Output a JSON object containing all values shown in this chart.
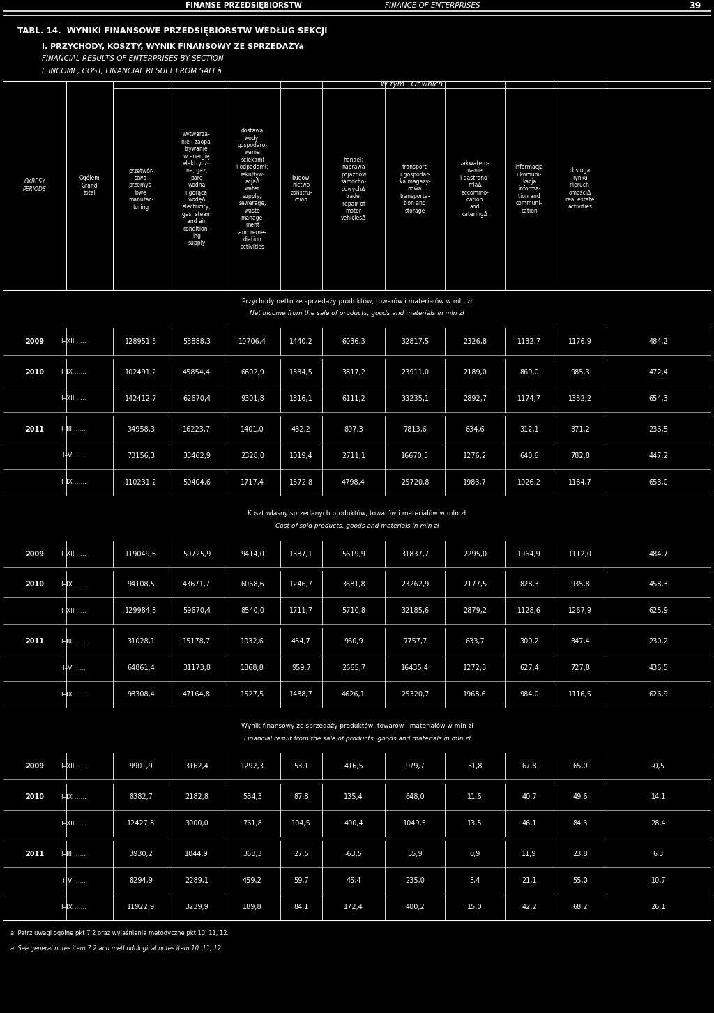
{
  "page_header_left": "FINANSE PRZEDSIĘBIORSTW",
  "page_header_right": "FINANCE OF ENTERPRISES",
  "page_number": "39",
  "title_line1": "TABL. 14.  WYNIKI FINANSOWE PRZEDSIĘBIORSTW WEDŁUG SEKCJI",
  "title_line2": "I. PRZYCHODY, KOSZTY, WYNIK FINANSOWY ZE SPRZEDAŻYà",
  "title_line3": "FINANCIAL RESULTS OF ENTERPRISES BY SECTION",
  "title_line4": "I. INCOME, COST, FINANCIAL RESULT FROM SALEà",
  "col_headers": [
    "OKRESY\nPERIODS",
    "Ogółem\nGrand\ntotal",
    "przetwór-\nstwo\nprzemys-\nłowe\nmanufac-\nturing",
    "wytwarza-\nnie i zaopa-\ntrywanie\nw energię\nelektrycz-\nna, gaz,\nparę\nwodną\ni gorącą\nwodęΔ\nelectricity,\ngas, steam\nand air\ncondition-\ning\nsupply",
    "dostawa\nwody;\ngospodaro-\nwanie\nściekami\ni odpadami;\nrekultyw-\nacjaΔ\nwater\nsupply;\nsewerage,\nwaste\nmanage-\nment\nand reme-\ndiation\nactivities",
    "budow-\nnictwo\nconstru-\nction",
    "handel;\nnaprawa\npojazdów\nsamocho-\ndowychΔ\ntrade;\nrepair of\nmotor\nvehiclesΔ",
    "transport\ni gospodar-\nka magazy-\nnowa\ntransporta-\ntion and\nstorage",
    "zakwatero-\nwanie\ni gastrono-\nmiaΔ\naccommo-\ndation\nand\ncateringΔ",
    "informacja\ni komuni-\nkacja\ninforma-\ntion and\ncommuni-\ncation",
    "obsługa\nrynku\nnieruch-\nomościΔ\nreal estate\nactivities"
  ],
  "wtym_ofwhich": "W tym   Of which",
  "section1_title_pl": "Przychody netto ze sprzedaży produktów, towarów i materiałów w mln zł",
  "section1_title_en": "Net income from the sale of products, goods and materials in mln zł",
  "section2_title_pl": "Koszt własny sprzedanych produktów, towarów i materiałów w mln zł",
  "section2_title_en": "Cost of sold products, goods and materials in mln zł",
  "section3_title_pl": "Wynik finansowy ze sprzedaży produktów, towarów i materiałów w mln zł",
  "section3_title_en": "Financial result from the sale of products, goods and materials in mln zł",
  "rows": {
    "section1": [
      [
        "2009",
        "I–XII .....",
        "128951,5",
        "53888,3",
        "10706,4",
        "1440,2",
        "6036,3",
        "32817,5",
        "2326,8",
        "1132,7",
        "1176,9",
        "484,2"
      ],
      [
        "2010",
        "I–IX ......",
        "102491,2",
        "45854,4",
        "6602,9",
        "1334,5",
        "3817,2",
        "23911,0",
        "2189,0",
        "869,0",
        "985,3",
        "472,4"
      ],
      [
        "",
        "I–XII .....",
        "142412,7",
        "62670,4",
        "9301,8",
        "1816,1",
        "6111,2",
        "33235,1",
        "2892,7",
        "1174,7",
        "1352,2",
        "654,3"
      ],
      [
        "2011",
        "I–III ......",
        "34958,3",
        "16223,7",
        "1401,0",
        "482,2",
        "897,3",
        "7813,6",
        "634,6",
        "312,1",
        "371,2",
        "236,5"
      ],
      [
        "",
        "I–VI .....",
        "73156,3",
        "33462,9",
        "2328,0",
        "1019,4",
        "2711,1",
        "16670,5",
        "1276,2",
        "648,6",
        "782,8",
        "447,2"
      ],
      [
        "",
        "I–IX ......",
        "110231,2",
        "50404,6",
        "1717,4",
        "1572,8",
        "4798,4",
        "25720,8",
        "1983,7",
        "1026,2",
        "1184,7",
        "653,0"
      ]
    ],
    "section2": [
      [
        "2009",
        "I–XII .....",
        "119049,6",
        "50725,9",
        "9414,0",
        "1387,1",
        "5619,9",
        "31837,7",
        "2295,0",
        "1064,9",
        "1112,0",
        "484,7"
      ],
      [
        "2010",
        "I–IX ......",
        "94108,5",
        "43671,7",
        "6068,6",
        "1246,7",
        "3681,8",
        "23262,9",
        "2177,5",
        "828,3",
        "935,8",
        "458,3"
      ],
      [
        "",
        "I–XII .....",
        "129984,8",
        "59670,4",
        "8540,0",
        "1711,7",
        "5710,8",
        "32185,6",
        "2879,2",
        "1128,6",
        "1267,9",
        "625,9"
      ],
      [
        "2011",
        "I–III ......",
        "31028,1",
        "15178,7",
        "1032,6",
        "454,7",
        "960,9",
        "7757,7",
        "633,7",
        "300,2",
        "347,4",
        "230,2"
      ],
      [
        "",
        "I–VI .....",
        "64861,4",
        "31173,8",
        "1868,8",
        "959,7",
        "2665,7",
        "16435,4",
        "1272,8",
        "627,4",
        "727,8",
        "436,5"
      ],
      [
        "",
        "I–IX ......",
        "98308,4",
        "47164,8",
        "1527,5",
        "1488,7",
        "4626,1",
        "25320,7",
        "1968,6",
        "984,0",
        "1116,5",
        "626,9"
      ]
    ],
    "section3": [
      [
        "2009",
        "I–XII .....",
        "9901,9",
        "3162,4",
        "1292,3",
        "53,1",
        "416,5",
        "979,7",
        "31,8",
        "67,8",
        "65,0",
        "-0,5"
      ],
      [
        "2010",
        "I–IX ......",
        "8382,7",
        "2182,8",
        "534,3",
        "87,8",
        "135,4",
        "648,0",
        "11,6",
        "40,7",
        "49,6",
        "14,1"
      ],
      [
        "",
        "I–XII .....",
        "12427,8",
        "3000,0",
        "761,8",
        "104,5",
        "400,4",
        "1049,5",
        "13,5",
        "46,1",
        "84,3",
        "28,4"
      ],
      [
        "2011",
        "I–III ......",
        "3930,2",
        "1044,9",
        "368,3",
        "27,5",
        "-63,5",
        "55,9",
        "0,9",
        "11,9",
        "23,8",
        "6,3"
      ],
      [
        "",
        "I–VI .....",
        "8294,9",
        "2289,1",
        "459,2",
        "59,7",
        "45,4",
        "235,0",
        "3,4",
        "21,1",
        "55,0",
        "10,7"
      ],
      [
        "",
        "I–IX ......",
        "11922,9",
        "3239,9",
        "189,8",
        "84,1",
        "172,4",
        "400,2",
        "15,0",
        "42,2",
        "68,2",
        "26,1"
      ]
    ]
  },
  "footnote1": "a  Patrz uwagi ogólne pkt 7.2 oraz wyjaśnienia metodyczne pkt 10, 11, 12.",
  "footnote2": "a  See general notes item 7.2 and methodological notes item 10, 11, 12.",
  "bg_color": "#000000",
  "text_color": "#ffffff",
  "line_color": "#ffffff"
}
